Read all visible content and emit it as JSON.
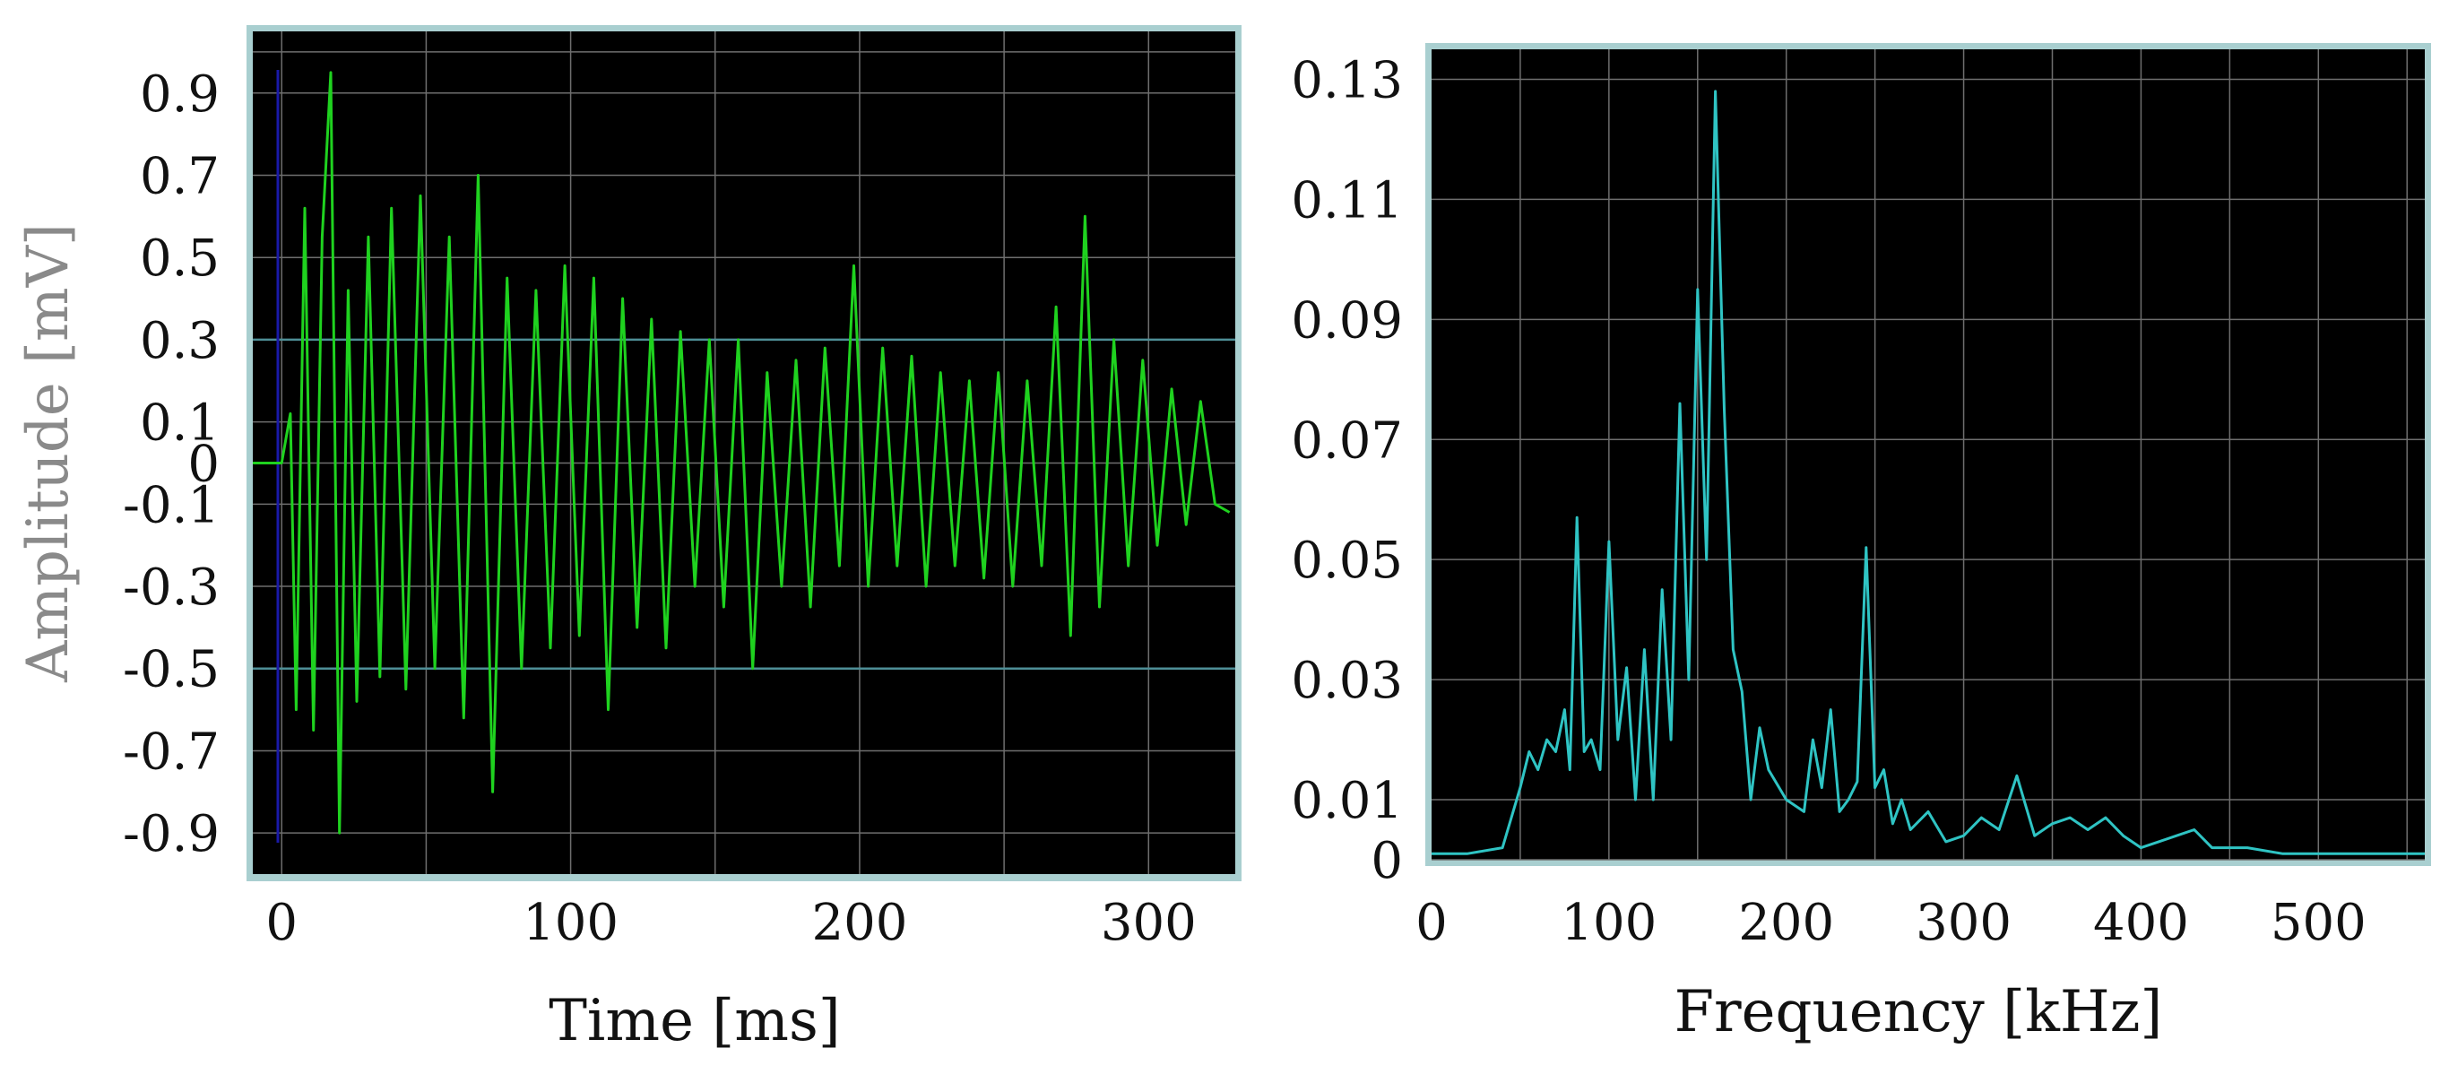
{
  "chart_data": [
    {
      "type": "line",
      "xlabel": "Time [ms]",
      "ylabel": "Amplitude [mV]",
      "xlim": [
        -10,
        330
      ],
      "ylim": [
        -1.0,
        1.05
      ],
      "x_ticks": [
        "0",
        "100",
        "200",
        "300"
      ],
      "x_tick_values": [
        0,
        100,
        200,
        300
      ],
      "y_ticks": [
        "0.9",
        "0.7",
        "0.5",
        "0.3",
        "0.1",
        "0",
        "-0.1",
        "-0.3",
        "-0.5",
        "-0.7",
        "-0.9"
      ],
      "y_tick_values": [
        0.9,
        0.7,
        0.5,
        0.3,
        0.1,
        0,
        -0.1,
        -0.3,
        -0.5,
        -0.7,
        -0.9
      ],
      "grid": true,
      "background": "#000000",
      "frame_color": "#7fbfbf",
      "series": [
        {
          "color": "#1fd21f",
          "style": "decaying oscillatory waveform",
          "x": [
            -10,
            0,
            3,
            5,
            8,
            11,
            14,
            17,
            20,
            23,
            26,
            30,
            34,
            38,
            43,
            48,
            53,
            58,
            63,
            68,
            73,
            78,
            83,
            88,
            93,
            98,
            103,
            108,
            113,
            118,
            123,
            128,
            133,
            138,
            143,
            148,
            153,
            158,
            163,
            168,
            173,
            178,
            183,
            188,
            193,
            198,
            203,
            208,
            213,
            218,
            223,
            228,
            233,
            238,
            243,
            248,
            253,
            258,
            263,
            268,
            273,
            278,
            283,
            288,
            293,
            298,
            303,
            308,
            313,
            318,
            323,
            328
          ],
          "y": [
            0.0,
            0.0,
            0.12,
            -0.6,
            0.62,
            -0.65,
            0.55,
            0.95,
            -0.9,
            0.42,
            -0.58,
            0.55,
            -0.52,
            0.62,
            -0.55,
            0.65,
            -0.5,
            0.55,
            -0.62,
            0.7,
            -0.8,
            0.45,
            -0.5,
            0.42,
            -0.45,
            0.48,
            -0.42,
            0.45,
            -0.6,
            0.4,
            -0.4,
            0.35,
            -0.45,
            0.32,
            -0.3,
            0.3,
            -0.35,
            0.3,
            -0.5,
            0.22,
            -0.3,
            0.25,
            -0.35,
            0.28,
            -0.25,
            0.48,
            -0.3,
            0.28,
            -0.25,
            0.26,
            -0.3,
            0.22,
            -0.25,
            0.2,
            -0.28,
            0.22,
            -0.3,
            0.2,
            -0.25,
            0.38,
            -0.42,
            0.6,
            -0.35,
            0.3,
            -0.25,
            0.25,
            -0.2,
            0.18,
            -0.15,
            0.15,
            -0.1,
            -0.12
          ]
        }
      ]
    },
    {
      "type": "line",
      "xlabel": "Frequency [kHz]",
      "ylabel": "",
      "xlim": [
        0,
        560
      ],
      "ylim": [
        0,
        0.135
      ],
      "x_ticks": [
        "0",
        "100",
        "200",
        "300",
        "400",
        "500"
      ],
      "x_tick_values": [
        0,
        100,
        200,
        300,
        400,
        500
      ],
      "y_ticks": [
        "0.13",
        "0.11",
        "0.09",
        "0.07",
        "0.05",
        "0.03",
        "0.01",
        "0"
      ],
      "y_tick_values": [
        0.13,
        0.11,
        0.09,
        0.07,
        0.05,
        0.03,
        0.01,
        0
      ],
      "grid": true,
      "background": "#000000",
      "frame_color": "#7fbfbf",
      "series": [
        {
          "color": "#2fc4c4",
          "style": "frequency spectrum",
          "x": [
            0,
            20,
            40,
            50,
            55,
            60,
            65,
            70,
            75,
            78,
            82,
            86,
            90,
            95,
            100,
            105,
            110,
            115,
            120,
            125,
            130,
            135,
            140,
            145,
            150,
            155,
            160,
            165,
            170,
            175,
            180,
            185,
            190,
            200,
            210,
            215,
            220,
            225,
            230,
            235,
            240,
            245,
            250,
            255,
            260,
            265,
            270,
            280,
            290,
            300,
            310,
            320,
            330,
            340,
            350,
            360,
            370,
            380,
            390,
            400,
            410,
            420,
            430,
            440,
            460,
            480,
            500,
            520,
            540,
            560
          ],
          "y": [
            0.001,
            0.001,
            0.002,
            0.012,
            0.018,
            0.015,
            0.02,
            0.018,
            0.025,
            0.015,
            0.057,
            0.018,
            0.02,
            0.015,
            0.053,
            0.02,
            0.032,
            0.01,
            0.035,
            0.01,
            0.045,
            0.02,
            0.076,
            0.03,
            0.095,
            0.05,
            0.128,
            0.075,
            0.035,
            0.028,
            0.01,
            0.022,
            0.015,
            0.01,
            0.008,
            0.02,
            0.012,
            0.025,
            0.008,
            0.01,
            0.013,
            0.052,
            0.012,
            0.015,
            0.006,
            0.01,
            0.005,
            0.008,
            0.003,
            0.004,
            0.007,
            0.005,
            0.014,
            0.004,
            0.006,
            0.007,
            0.005,
            0.007,
            0.004,
            0.002,
            0.003,
            0.004,
            0.005,
            0.002,
            0.002,
            0.001,
            0.001,
            0.001,
            0.001,
            0.001
          ]
        }
      ]
    }
  ]
}
